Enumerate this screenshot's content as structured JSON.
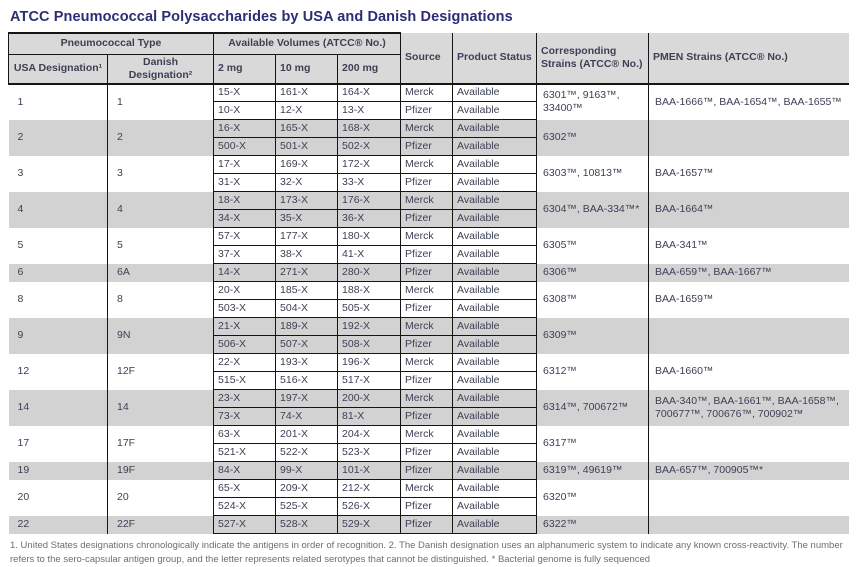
{
  "page": {
    "title": "ATCC Pneumococcal Polysaccharides by USA and Danish Designations",
    "colors": {
      "title_text": "#2c2d74",
      "body_text": "#3d4055",
      "header_bg": "#d9d9d9",
      "row_band_bg": "#d2d2d2",
      "border": "#151515",
      "footnote_text": "#6e6e72"
    }
  },
  "table": {
    "headers": {
      "pneumococcal_type": "Pneumococcal Type",
      "usa_designation": "USA Designation¹",
      "danish_designation": "Danish Designation²",
      "available_volumes": "Available Volumes (ATCC® No.)",
      "vol_2mg": "2 mg",
      "vol_10mg": "10 mg",
      "vol_200mg": "200 mg",
      "source": "Source",
      "product_status": "Product Status",
      "corresponding_strains": "Corresponding Strains (ATCC® No.)",
      "pmen_strains": "PMEN Strains (ATCC® No.)"
    },
    "groups": [
      {
        "usa": "1",
        "danish": "1",
        "rows": [
          {
            "v2": "15-X",
            "v10": "161-X",
            "v200": "164-X",
            "source": "Merck",
            "status": "Available"
          },
          {
            "v2": "10-X",
            "v10": "12-X",
            "v200": "13-X",
            "source": "Pfizer",
            "status": "Available"
          }
        ],
        "corresponding": "6301™, 9163™, 33400™",
        "pmen": "BAA-1666™, BAA-1654™, BAA-1655™"
      },
      {
        "usa": "2",
        "danish": "2",
        "rows": [
          {
            "v2": "16-X",
            "v10": "165-X",
            "v200": "168-X",
            "source": "Merck",
            "status": "Available"
          },
          {
            "v2": "500-X",
            "v10": "501-X",
            "v200": "502-X",
            "source": "Pfizer",
            "status": "Available"
          }
        ],
        "corresponding": "6302™",
        "pmen": ""
      },
      {
        "usa": "3",
        "danish": "3",
        "rows": [
          {
            "v2": "17-X",
            "v10": "169-X",
            "v200": "172-X",
            "source": "Merck",
            "status": "Available"
          },
          {
            "v2": "31-X",
            "v10": "32-X",
            "v200": "33-X",
            "source": "Pfizer",
            "status": "Available"
          }
        ],
        "corresponding": "6303™, 10813™",
        "pmen": "BAA-1657™"
      },
      {
        "usa": "4",
        "danish": "4",
        "rows": [
          {
            "v2": "18-X",
            "v10": "173-X",
            "v200": "176-X",
            "source": "Merck",
            "status": "Available"
          },
          {
            "v2": "34-X",
            "v10": "35-X",
            "v200": "36-X",
            "source": "Pfizer",
            "status": "Available"
          }
        ],
        "corresponding": "6304™, BAA-334™*",
        "pmen": "BAA-1664™"
      },
      {
        "usa": "5",
        "danish": "5",
        "rows": [
          {
            "v2": "57-X",
            "v10": "177-X",
            "v200": "180-X",
            "source": "Merck",
            "status": "Available"
          },
          {
            "v2": "37-X",
            "v10": "38-X",
            "v200": "41-X",
            "source": "Pfizer",
            "status": "Available"
          }
        ],
        "corresponding": "6305™",
        "pmen": "BAA-341™"
      },
      {
        "usa": "6",
        "danish": "6A",
        "rows": [
          {
            "v2": "14-X",
            "v10": "271-X",
            "v200": "280-X",
            "source": "Pfizer",
            "status": "Available"
          }
        ],
        "corresponding": "6306™",
        "pmen": "BAA-659™, BAA-1667™"
      },
      {
        "usa": "8",
        "danish": "8",
        "rows": [
          {
            "v2": "20-X",
            "v10": "185-X",
            "v200": "188-X",
            "source": "Merck",
            "status": "Available"
          },
          {
            "v2": "503-X",
            "v10": "504-X",
            "v200": "505-X",
            "source": "Pfizer",
            "status": "Available"
          }
        ],
        "corresponding": "6308™",
        "pmen": "BAA-1659™"
      },
      {
        "usa": "9",
        "danish": "9N",
        "rows": [
          {
            "v2": "21-X",
            "v10": "189-X",
            "v200": "192-X",
            "source": "Merck",
            "status": "Available"
          },
          {
            "v2": "506-X",
            "v10": "507-X",
            "v200": "508-X",
            "source": "Pfizer",
            "status": "Available"
          }
        ],
        "corresponding": "6309™",
        "pmen": ""
      },
      {
        "usa": "12",
        "danish": "12F",
        "rows": [
          {
            "v2": "22-X",
            "v10": "193-X",
            "v200": "196-X",
            "source": "Merck",
            "status": "Available"
          },
          {
            "v2": "515-X",
            "v10": "516-X",
            "v200": "517-X",
            "source": "Pfizer",
            "status": "Available"
          }
        ],
        "corresponding": "6312™",
        "pmen": "BAA-1660™"
      },
      {
        "usa": "14",
        "danish": "14",
        "rows": [
          {
            "v2": "23-X",
            "v10": "197-X",
            "v200": "200-X",
            "source": "Merck",
            "status": "Available"
          },
          {
            "v2": "73-X",
            "v10": "74-X",
            "v200": "81-X",
            "source": "Pfizer",
            "status": "Available"
          }
        ],
        "corresponding": "6314™, 700672™",
        "pmen": "BAA-340™, BAA-1661™, BAA-1658™, 700677™, 700676™, 700902™"
      },
      {
        "usa": "17",
        "danish": "17F",
        "rows": [
          {
            "v2": "63-X",
            "v10": "201-X",
            "v200": "204-X",
            "source": "Merck",
            "status": "Available"
          },
          {
            "v2": "521-X",
            "v10": "522-X",
            "v200": "523-X",
            "source": "Pfizer",
            "status": "Available"
          }
        ],
        "corresponding": "6317™",
        "pmen": ""
      },
      {
        "usa": "19",
        "danish": "19F",
        "rows": [
          {
            "v2": "84-X",
            "v10": "99-X",
            "v200": "101-X",
            "source": "Pfizer",
            "status": "Available"
          }
        ],
        "corresponding": "6319™, 49619™",
        "pmen": "BAA-657™, 700905™*"
      },
      {
        "usa": "20",
        "danish": "20",
        "rows": [
          {
            "v2": "65-X",
            "v10": "209-X",
            "v200": "212-X",
            "source": "Merck",
            "status": "Available"
          },
          {
            "v2": "524-X",
            "v10": "525-X",
            "v200": "526-X",
            "source": "Pfizer",
            "status": "Available"
          }
        ],
        "corresponding": "6320™",
        "pmen": ""
      },
      {
        "usa": "22",
        "danish": "22F",
        "rows": [
          {
            "v2": "527-X",
            "v10": "528-X",
            "v200": "529-X",
            "source": "Pfizer",
            "status": "Available"
          }
        ],
        "corresponding": "6322™",
        "pmen": ""
      }
    ]
  },
  "footnote": "1. United States designations chronologically indicate the antigens in order of recognition. 2. The Danish designation uses an alphanumeric system to indicate any known cross-reactivity. The number refers to the sero-capsular antigen group, and the letter represents related serotypes that cannot be distinguished. * Bacterial genome is fully sequenced"
}
